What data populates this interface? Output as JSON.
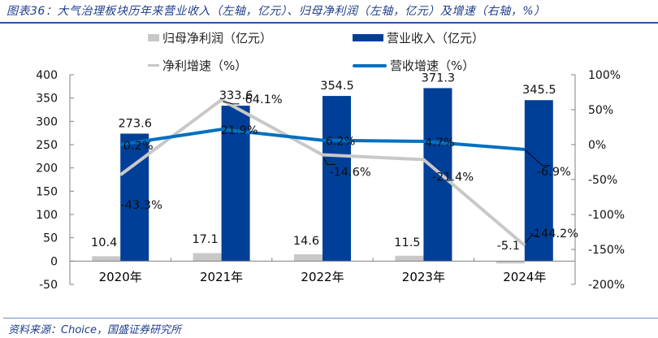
{
  "header": {
    "title": "图表36：大气治理板块历年来营业收入（左轴，亿元）、归母净利润（左轴，亿元）及增速（右轴，%）"
  },
  "footer": {
    "source": "资料来源：Choice，国盛证券研究所"
  },
  "legend": {
    "net_profit": "归母净利润（亿元）",
    "revenue": "营业收入（亿元）",
    "net_growth": "净利增速（%）",
    "revenue_growth": "营收增速（%）"
  },
  "colors": {
    "revenue": "#003f98",
    "net_profit": "#c8c8c8",
    "revenue_growth": "#0070c0",
    "net_growth": "#c8c8c8",
    "title": "#1f3e8c"
  },
  "chart_data": {
    "type": "bar",
    "title": "大气治理板块历年来营业收入（左轴，亿元）、归母净利润（左轴，亿元）及增速（右轴，%）",
    "categories": [
      "2020年",
      "2021年",
      "2022年",
      "2023年",
      "2024年"
    ],
    "series": [
      {
        "name": "归母净利润（亿元）",
        "type": "bar",
        "axis": "left",
        "values": [
          10.4,
          17.1,
          14.6,
          11.5,
          -5.1
        ]
      },
      {
        "name": "营业收入（亿元）",
        "type": "bar",
        "axis": "left",
        "values": [
          273.6,
          333.6,
          354.5,
          371.3,
          345.5
        ]
      },
      {
        "name": "净利增速（%）",
        "type": "line",
        "axis": "right",
        "values": [
          -43.3,
          64.1,
          -14.6,
          -21.4,
          -144.2
        ]
      },
      {
        "name": "营收增速（%）",
        "type": "line",
        "axis": "right",
        "values": [
          0.2,
          21.9,
          6.2,
          4.7,
          -6.9
        ]
      }
    ],
    "left_axis": {
      "ylim": [
        -50,
        400
      ],
      "ticks": [
        "400",
        "350",
        "300",
        "250",
        "200",
        "150",
        "100",
        "50",
        "0",
        "-50"
      ]
    },
    "right_axis": {
      "ylim": [
        -200,
        100
      ],
      "ticks": [
        "100%",
        "50%",
        "0%",
        "-50%",
        "-100%",
        "-150%",
        "-200%"
      ]
    },
    "data_labels": {
      "net_profit": [
        "10.4",
        "17.1",
        "14.6",
        "11.5",
        "-5.1"
      ],
      "revenue": [
        "273.6",
        "333.6",
        "354.5",
        "371.3",
        "345.5"
      ],
      "net_growth": [
        "-43.3%",
        "64.1%",
        "-14.6%",
        "-21.4%",
        "-144.2%"
      ],
      "revenue_growth": [
        "0.2%",
        "21.9%",
        "6.2%",
        "4.7%",
        "-6.9%"
      ]
    },
    "xlabel": "",
    "ylabel": "",
    "grid": false,
    "legend_position": "top"
  }
}
